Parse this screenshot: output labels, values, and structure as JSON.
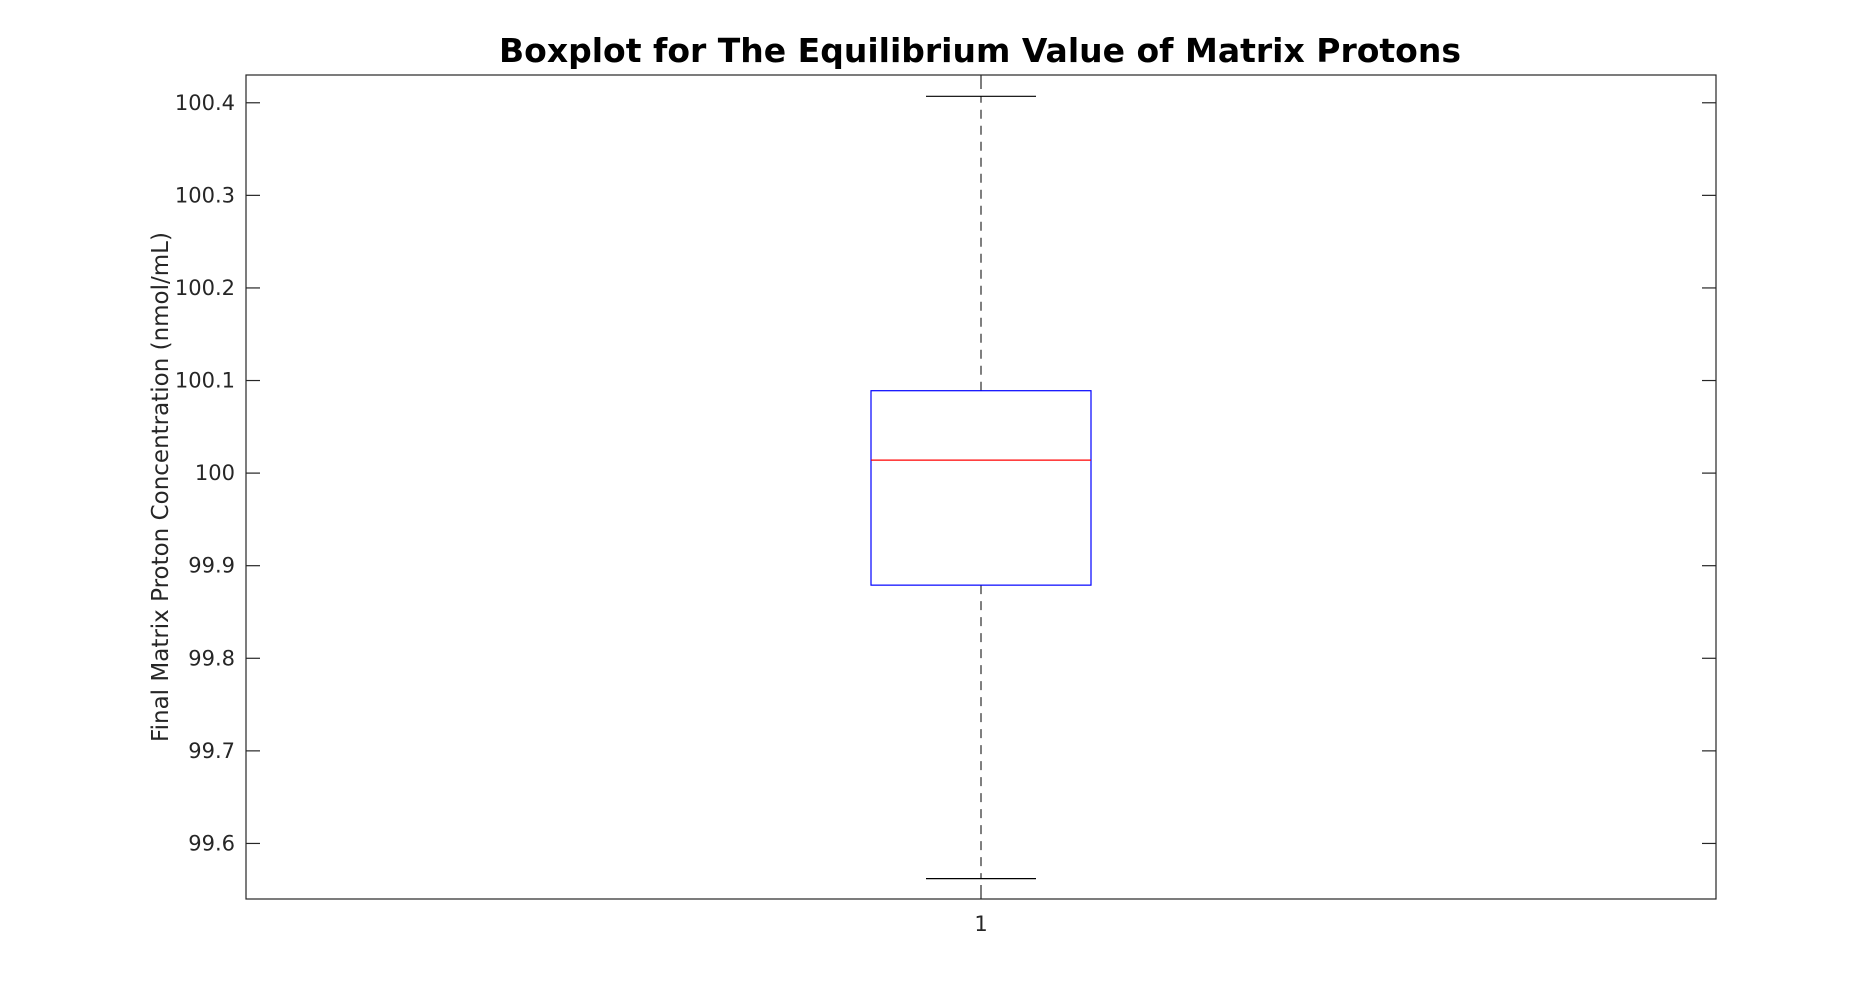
{
  "chart_data": {
    "type": "boxplot",
    "title": "Boxplot for The Equilibrium Value of Matrix Protons",
    "xlabel": "",
    "ylabel": "Final Matrix Proton Concentration (nmol/mL)",
    "categories": [
      "1"
    ],
    "ylim": [
      99.54,
      100.43
    ],
    "yticks": [
      99.6,
      99.7,
      99.8,
      99.9,
      100,
      100.1,
      100.2,
      100.3,
      100.4
    ],
    "ytick_labels": [
      "99.6",
      "99.7",
      "99.8",
      "99.9",
      "100",
      "100.1",
      "100.2",
      "100.3",
      "100.4"
    ],
    "boxes": [
      {
        "category": "1",
        "whisker_low": 99.562,
        "q1": 99.879,
        "median": 100.014,
        "q3": 100.089,
        "whisker_high": 100.407
      }
    ],
    "grid": false,
    "legend": "none",
    "colors": {
      "box": "#0000ff",
      "median": "#ff0000",
      "whisker": "#000000",
      "axes": "#262626"
    }
  }
}
